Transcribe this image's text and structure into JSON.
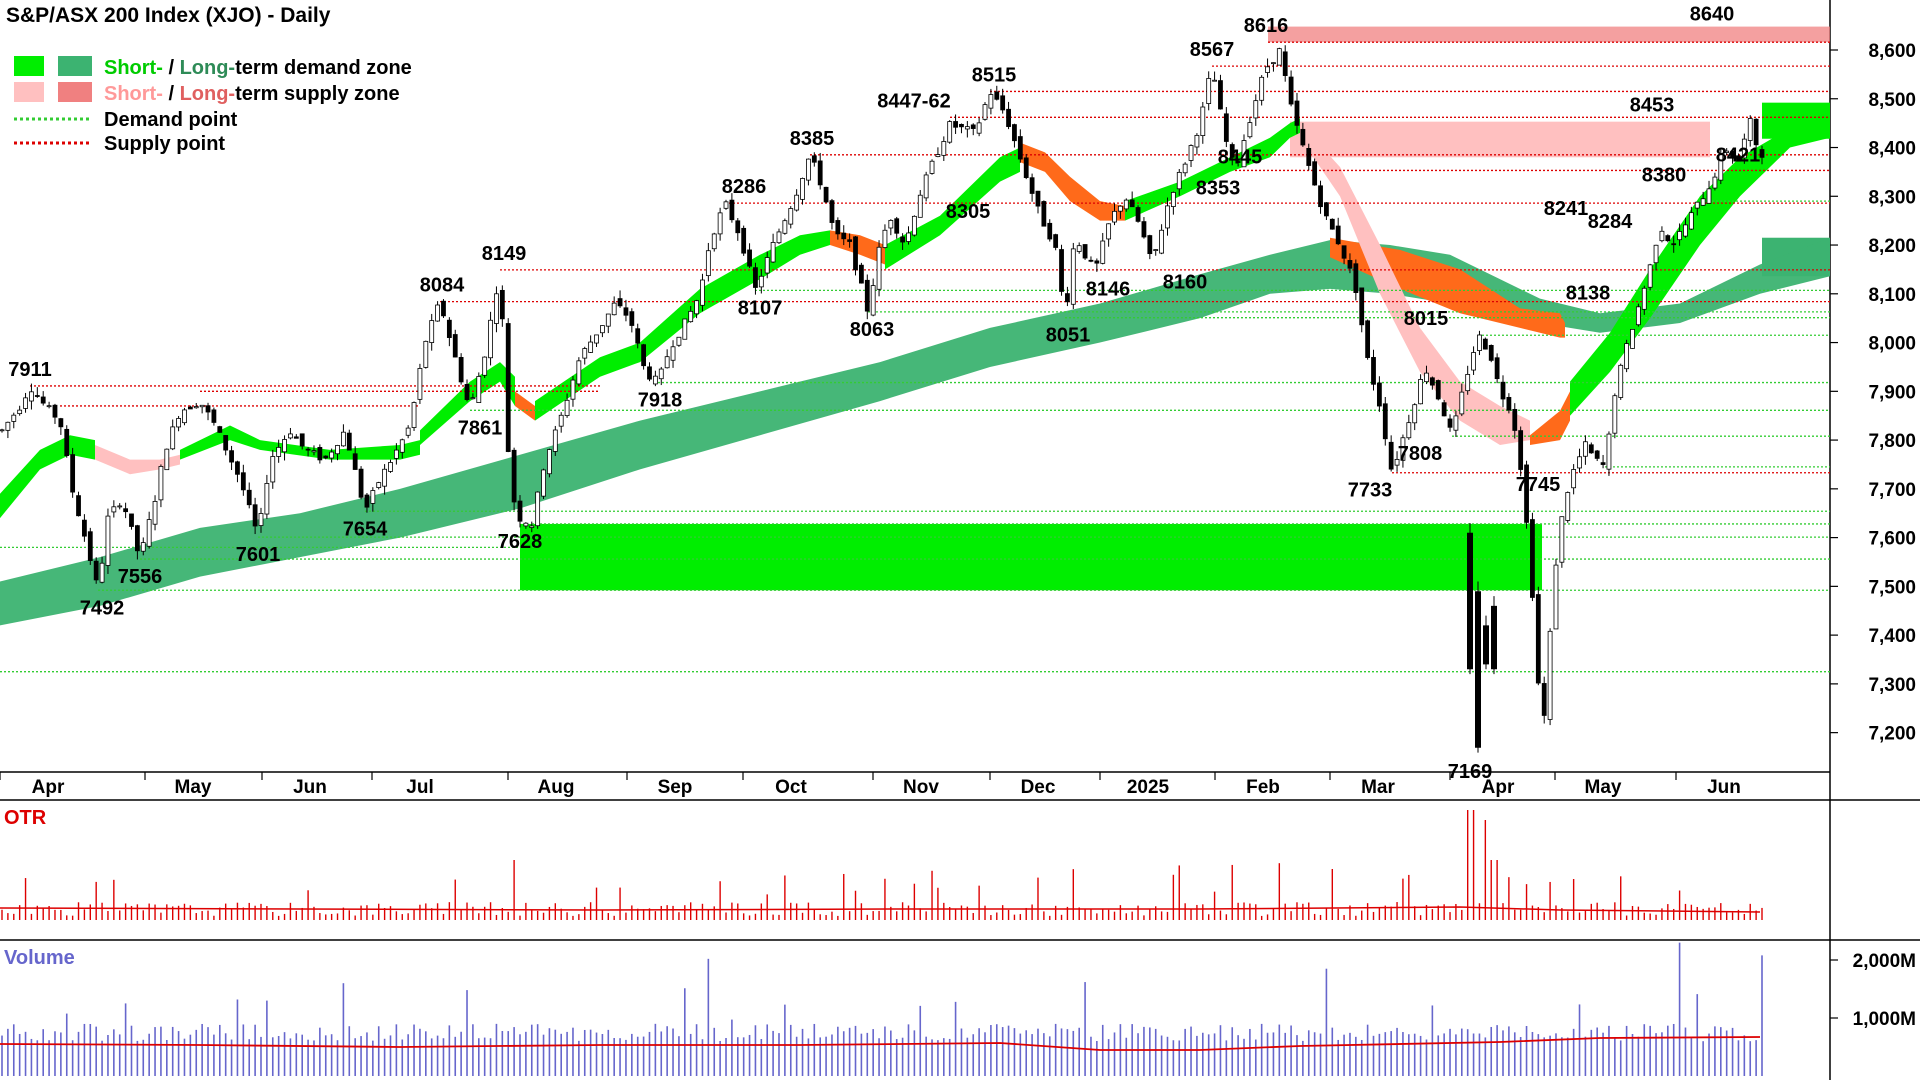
{
  "title": "S&P/ASX 200 Index (XJO) - Daily",
  "colors": {
    "short_demand": "#00ee00",
    "long_demand": "#3cb371",
    "short_supply": "#ffc0c0",
    "long_supply": "#f08080",
    "demand_point": "#33cc33",
    "supply_point": "#dd0000",
    "transition": "#ff6a1a",
    "otr": "#dd0000",
    "volume": "#6666cc",
    "volume_avg": "#dd0000",
    "candle_up": "#ffffff",
    "candle_down": "#000000"
  },
  "legend": {
    "demand_zone": {
      "short": "Short-",
      "sep": " / ",
      "long": "Long-",
      "suffix": "term demand zone"
    },
    "supply_zone": {
      "short": "Short-",
      "sep": " / ",
      "long": "Long-",
      "suffix": "term supply zone"
    },
    "demand_point": "Demand point",
    "supply_point": "Supply point"
  },
  "panels": {
    "otr_label": "OTR",
    "volume_label": "Volume"
  },
  "chart_data": {
    "type": "candlestick",
    "title": "S&P/ASX 200 Index (XJO) - Daily",
    "y_range": [
      7100,
      8680
    ],
    "y_ticks": [
      7200,
      7300,
      7400,
      7500,
      7600,
      7700,
      7800,
      7900,
      8000,
      8100,
      8200,
      8300,
      8400,
      8500,
      8600
    ],
    "y_tick_labels": [
      "7,200",
      "7,300",
      "7,400",
      "7,500",
      "7,600",
      "7,700",
      "7,800",
      "7,900",
      "8,000",
      "8,100",
      "8,200",
      "8,300",
      "8,400",
      "8,500",
      "8,600"
    ],
    "x_labels": [
      "Apr",
      "May",
      "Jun",
      "Jul",
      "Aug",
      "Sep",
      "Oct",
      "Nov",
      "Dec",
      "2025",
      "Feb",
      "Mar",
      "Apr",
      "May",
      "Jun"
    ],
    "swing_points": [
      {
        "label": "7911",
        "value": 7911,
        "pos": "above"
      },
      {
        "label": "7492",
        "value": 7492,
        "pos": "below"
      },
      {
        "label": "7556",
        "value": 7556,
        "pos": "below"
      },
      {
        "label": "7601",
        "value": 7601,
        "pos": "below"
      },
      {
        "label": "7654",
        "value": 7654,
        "pos": "below"
      },
      {
        "label": "8084",
        "value": 8084,
        "pos": "above"
      },
      {
        "label": "7861",
        "value": 7861,
        "pos": "below"
      },
      {
        "label": "8149",
        "value": 8149,
        "pos": "above"
      },
      {
        "label": "7628",
        "value": 7628,
        "pos": "below"
      },
      {
        "label": "7918",
        "value": 7918,
        "pos": "below"
      },
      {
        "label": "8286",
        "value": 8286,
        "pos": "above"
      },
      {
        "label": "8107",
        "value": 8107,
        "pos": "below"
      },
      {
        "label": "8385",
        "value": 8385,
        "pos": "above"
      },
      {
        "label": "8063",
        "value": 8063,
        "pos": "below"
      },
      {
        "label": "8447-62",
        "value": 8462,
        "pos": "above"
      },
      {
        "label": "8305",
        "value": 8305,
        "pos": "below"
      },
      {
        "label": "8515",
        "value": 8515,
        "pos": "above"
      },
      {
        "label": "8051",
        "value": 8051,
        "pos": "below"
      },
      {
        "label": "8146",
        "value": 8146,
        "pos": "below"
      },
      {
        "label": "8160",
        "value": 8160,
        "pos": "below"
      },
      {
        "label": "8353",
        "value": 8353,
        "pos": "below"
      },
      {
        "label": "8567",
        "value": 8567,
        "pos": "above"
      },
      {
        "label": "8616",
        "value": 8616,
        "pos": "above"
      },
      {
        "label": "8445",
        "value": 8445,
        "pos": "below"
      },
      {
        "label": "7733",
        "value": 7733,
        "pos": "below"
      },
      {
        "label": "8015",
        "value": 8015,
        "pos": "above"
      },
      {
        "label": "7808",
        "value": 7808,
        "pos": "below"
      },
      {
        "label": "7169",
        "value": 7169,
        "pos": "below"
      },
      {
        "label": "7745",
        "value": 7745,
        "pos": "below"
      },
      {
        "label": "8241",
        "value": 8241,
        "pos": "above"
      },
      {
        "label": "8138",
        "value": 8138,
        "pos": "below"
      },
      {
        "label": "8284",
        "value": 8284,
        "pos": "below"
      },
      {
        "label": "8453",
        "value": 8453,
        "pos": "above"
      },
      {
        "label": "8380",
        "value": 8380,
        "pos": "below"
      },
      {
        "label": "8640",
        "value": 8640,
        "pos": "above"
      },
      {
        "label": "8421",
        "value": 8421,
        "pos": "below"
      }
    ],
    "demand_points": [
      8421,
      8290,
      8138,
      8107,
      8063,
      8051,
      8015,
      7918,
      7861,
      7808,
      7745,
      7654,
      7628,
      7601,
      7556,
      7492,
      7325
    ],
    "supply_points": [
      8616,
      8567,
      8515,
      8462,
      8385,
      8353,
      8305,
      8286,
      8160,
      8149,
      8084,
      7911,
      7733
    ],
    "short_term_demand_zone": [
      8421,
      8490
    ],
    "long_term_demand_zone": [
      8140,
      8210
    ],
    "long_term_demand_zone_aug": [
      7492,
      7628
    ],
    "long_term_supply_zone": [
      8616,
      8648
    ],
    "short_term_supply_zone": [
      8380,
      8453
    ],
    "volume_ticks": [
      "1,000M",
      "2,000M"
    ]
  }
}
